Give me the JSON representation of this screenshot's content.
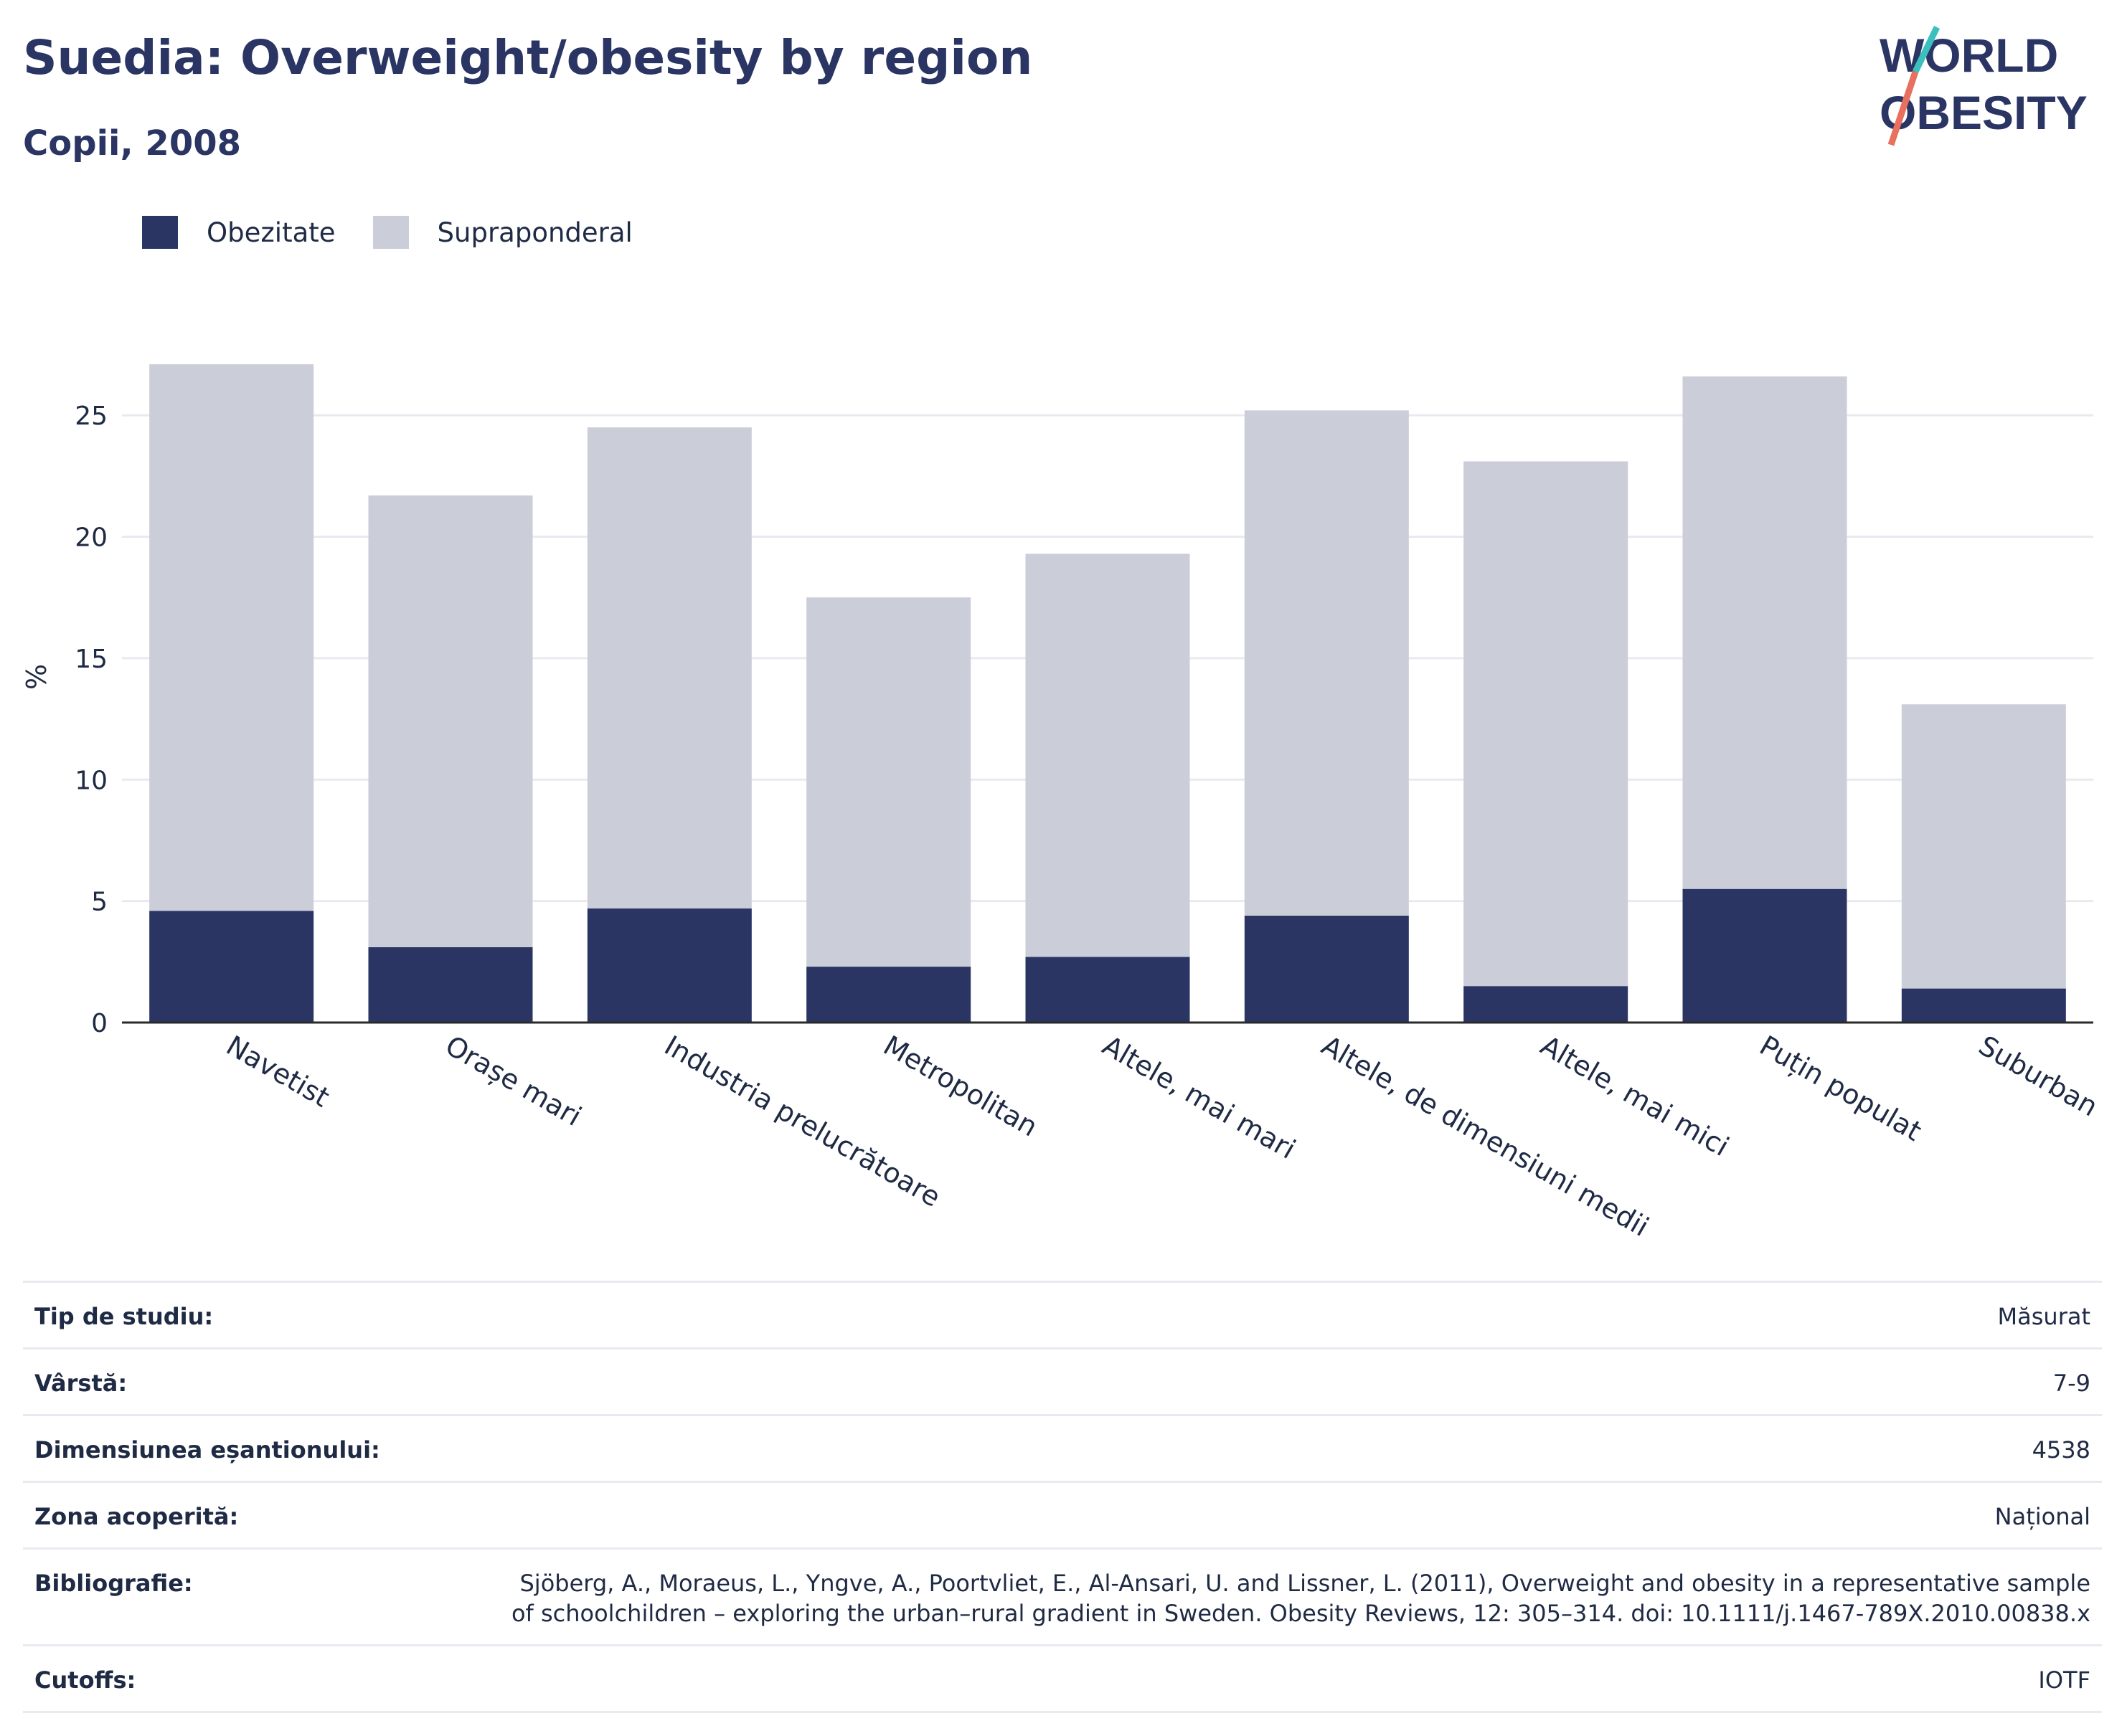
{
  "title": "Suedia: Overweight/obesity by region",
  "subtitle": "Copii, 2008",
  "logo": {
    "line1": "WORLD",
    "line2": "OBESITY"
  },
  "colors": {
    "obesity": "#2a3564",
    "overweight": "#cbcdd9",
    "accent_teal": "#3cbfbf",
    "accent_coral": "#e8705f",
    "axis": "#2a2a2a",
    "grid": "#e9eaf0"
  },
  "chart_data": {
    "type": "bar",
    "stacked": true,
    "categories": [
      "Navetist",
      "Orașe mari",
      "Industria prelucrătoare",
      "Metropolitan",
      "Altele, mai mari",
      "Altele, de dimensiuni medii",
      "Altele, mai mici",
      "Puțin populat",
      "Suburban"
    ],
    "series": [
      {
        "name": "Obezitate",
        "values": [
          4.6,
          3.1,
          4.7,
          2.3,
          2.7,
          4.4,
          1.5,
          5.5,
          1.4
        ]
      },
      {
        "name": "Supraponderal",
        "values": [
          22.5,
          18.6,
          19.8,
          15.2,
          16.6,
          20.8,
          21.6,
          21.1,
          11.7
        ]
      }
    ],
    "ylabel": "%",
    "yticks": [
      0,
      5,
      10,
      15,
      20,
      25
    ],
    "ylim": [
      0,
      27.1
    ],
    "grid": true,
    "legend": "top-left"
  },
  "info": [
    {
      "label": "Tip de studiu:",
      "value": "Măsurat"
    },
    {
      "label": "Vârstă:",
      "value": "7-9"
    },
    {
      "label": "Dimensiunea eșantionului:",
      "value": "4538"
    },
    {
      "label": "Zona acoperită:",
      "value": "Național"
    },
    {
      "label": "Bibliografie:",
      "value": "Sjöberg, A., Moraeus, L., Yngve, A., Poortvliet, E., Al-Ansari, U. and Lissner, L. (2011), Overweight and obesity in a representative sample of schoolchildren – exploring the urban–rural gradient in Sweden. Obesity Reviews, 12: 305–314. doi: 10.1111/j.1467-789X.2010.00838.x"
    },
    {
      "label": "Cutoffs:",
      "value": "IOTF"
    }
  ]
}
